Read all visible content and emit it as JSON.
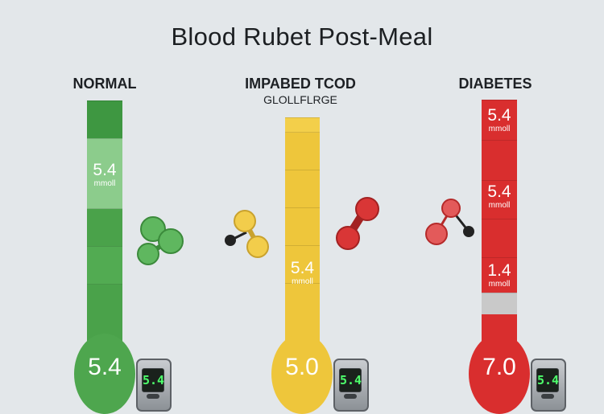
{
  "title": "Blood Rubet Post-Meal",
  "columns": [
    {
      "label": "NORMAL",
      "sublabel": "",
      "color": "#4da64d",
      "readings": [
        {
          "value": "5.4",
          "unit": "mmoll"
        }
      ],
      "bulb_value": "5.4",
      "meter_display": "5.4"
    },
    {
      "label": "IMPABED TCOD",
      "sublabel": "GLOLLFLRGE",
      "color": "#ecc43a",
      "readings": [
        {
          "value": "5.4",
          "unit": "mmoll"
        }
      ],
      "bulb_value": "5.0",
      "meter_display": "5.4"
    },
    {
      "label": "DIABETES",
      "sublabel": "",
      "color": "#d92e2e",
      "readings": [
        {
          "value": "5.4",
          "unit": "mmoll"
        },
        {
          "value": "5.4",
          "unit": "mmoll"
        },
        {
          "value": "1.4",
          "unit": "mmoll"
        }
      ],
      "bulb_value": "7.0",
      "meter_display": "5.4"
    }
  ]
}
